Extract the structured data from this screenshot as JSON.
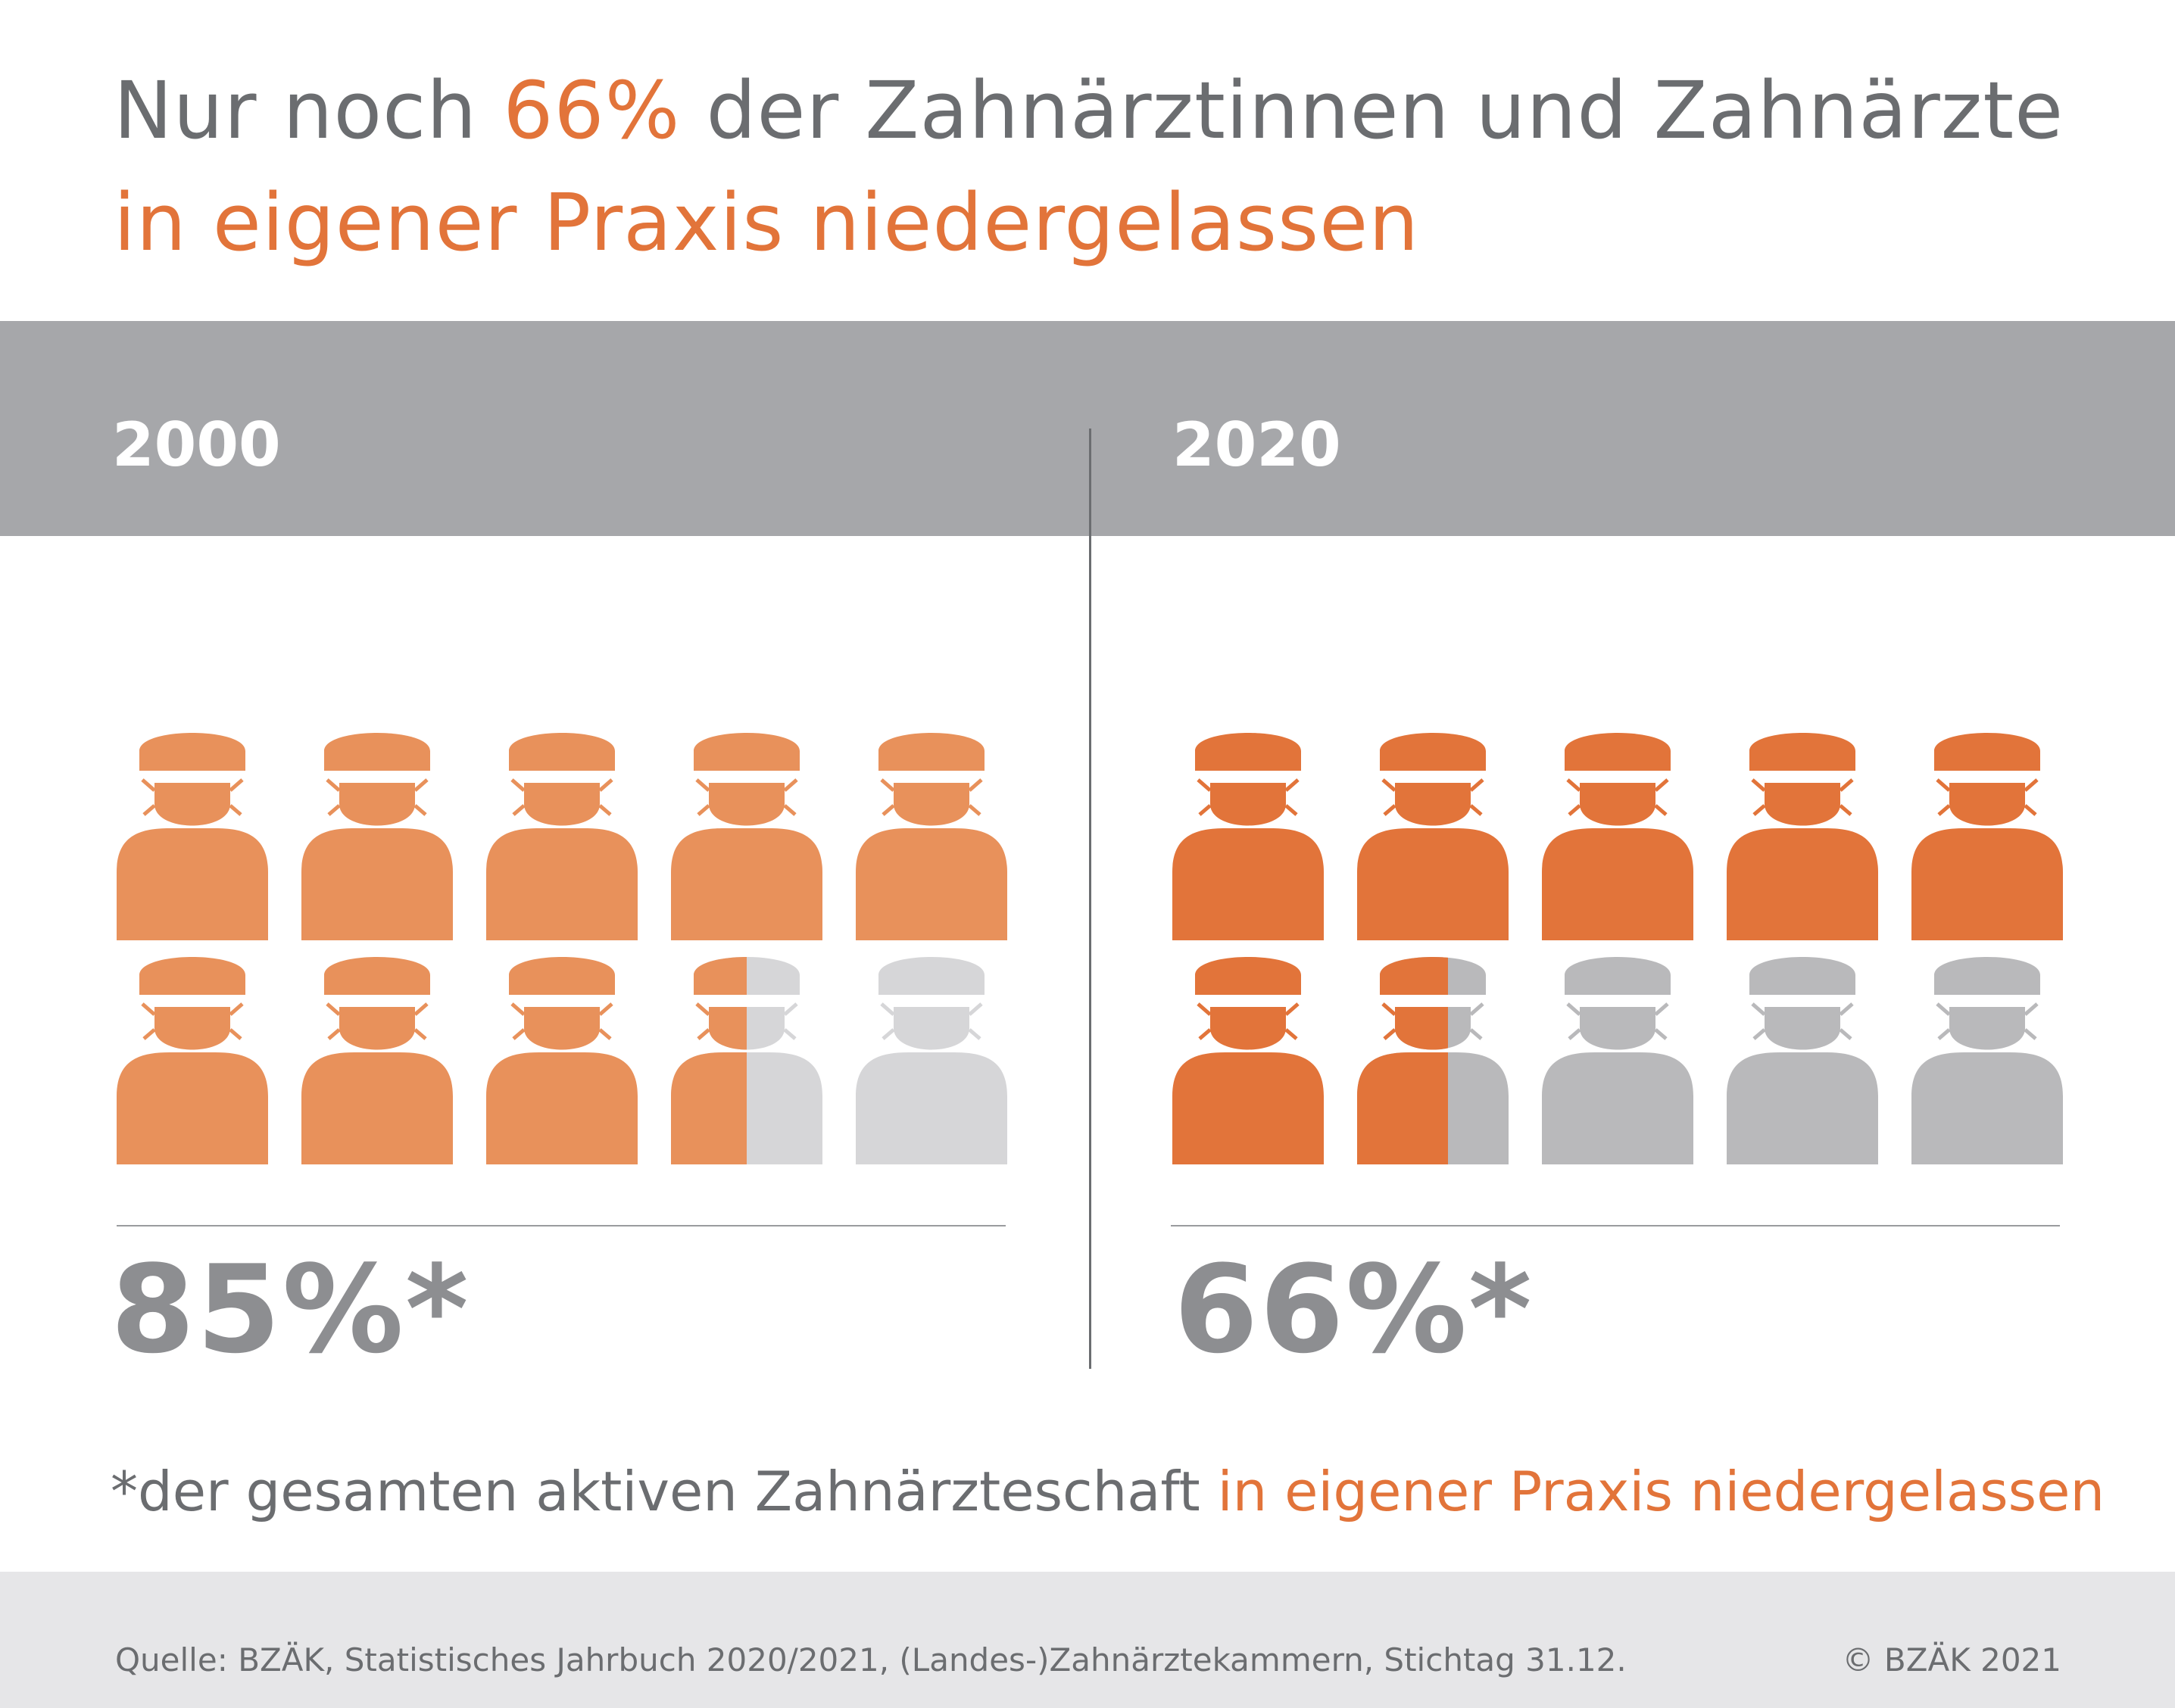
{
  "headline": {
    "part1": "Nur noch ",
    "accent1": "66%",
    "part2": " der Zahnärztinnen und Zahnärzte",
    "line2": "in eigener Praxis niedergelassen"
  },
  "chart_data": [
    {
      "type": "pictogram",
      "title": "2000",
      "value": 85,
      "unit": "%",
      "label": "85%*",
      "icons_total": 10,
      "icon": "dentist-with-mask-icon"
    },
    {
      "type": "pictogram",
      "title": "2020",
      "value": 66,
      "unit": "%",
      "label": "66%*",
      "icons_total": 10,
      "icon": "dentist-with-mask-icon"
    }
  ],
  "footnote": {
    "text": "*der gesamten aktiven Zahnärzteschaft ",
    "accent": "in eigener Praxis niedergelassen"
  },
  "source": "Quelle: BZÄK, Statistisches Jahrbuch 2020/2021, (Landes-)Zahnärztekammern, Stichtag 31.12.",
  "copyright": "© BZÄK 2021",
  "colors": {
    "accent_text": "#e2743a",
    "filled_2000": "#e8915b",
    "empty_2000": "#d6d6d8",
    "filled_2020": "#e2743a",
    "empty_2020": "#b9b9bb",
    "band": "#a6a7aa",
    "text": "#6b6d70"
  }
}
